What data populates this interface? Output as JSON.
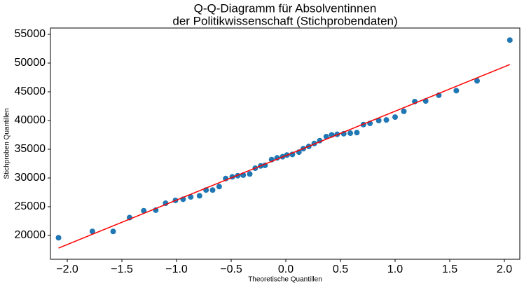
{
  "chart_data": {
    "type": "scatter",
    "title": [
      "Q-Q-Diagramm für Absolventinnen",
      "der Politikwissenschaft (Stichprobendaten)"
    ],
    "x_label": "Theoretische Quantillen",
    "y_label": "Stichproben Quantillen",
    "x": [
      -2.08,
      -1.77,
      -1.58,
      -1.43,
      -1.3,
      -1.19,
      -1.1,
      -1.01,
      -0.94,
      -0.87,
      -0.79,
      -0.73,
      -0.67,
      -0.61,
      -0.55,
      -0.49,
      -0.44,
      -0.39,
      -0.33,
      -0.28,
      -0.23,
      -0.19,
      -0.13,
      -0.08,
      -0.03,
      0.01,
      0.06,
      0.12,
      0.16,
      0.21,
      0.26,
      0.31,
      0.37,
      0.42,
      0.47,
      0.53,
      0.59,
      0.65,
      0.71,
      0.77,
      0.85,
      0.92,
      1.0,
      1.08,
      1.18,
      1.28,
      1.4,
      1.56,
      1.75,
      2.05
    ],
    "values": [
      19600,
      20700,
      20700,
      23100,
      24300,
      24400,
      25600,
      26100,
      26300,
      26700,
      26900,
      27900,
      27900,
      28500,
      29900,
      30200,
      30400,
      30500,
      30700,
      31700,
      32100,
      32200,
      33200,
      33500,
      33700,
      34000,
      34100,
      34500,
      35100,
      35500,
      36000,
      36500,
      37200,
      37500,
      37600,
      37700,
      37800,
      37900,
      39300,
      39500,
      40000,
      40100,
      40600,
      41600,
      43300,
      43400,
      44400,
      45200,
      46900,
      54000
    ],
    "color": "#1f77b4",
    "line": {
      "x": [
        -2.08,
        2.05
      ],
      "values": [
        17800,
        49750
      ],
      "color": "#ff0000"
    },
    "xlim": [
      -2.154,
      2.141
    ],
    "ylim": [
      15850,
      56100
    ],
    "xticks": [
      {
        "value": -2,
        "label": "−2.0"
      },
      {
        "value": -1.5,
        "label": "−1.5"
      },
      {
        "value": -1,
        "label": "−1.0"
      },
      {
        "value": -0.5,
        "label": "−0.5"
      },
      {
        "value": 0,
        "label": "0.0"
      },
      {
        "value": 0.5,
        "label": "0.5"
      },
      {
        "value": 1,
        "label": "1.0"
      },
      {
        "value": 1.5,
        "label": "1.5"
      },
      {
        "value": 2,
        "label": "2.0"
      }
    ],
    "yticks": [
      20000,
      25000,
      30000,
      35000,
      40000,
      45000,
      50000,
      55000
    ]
  }
}
